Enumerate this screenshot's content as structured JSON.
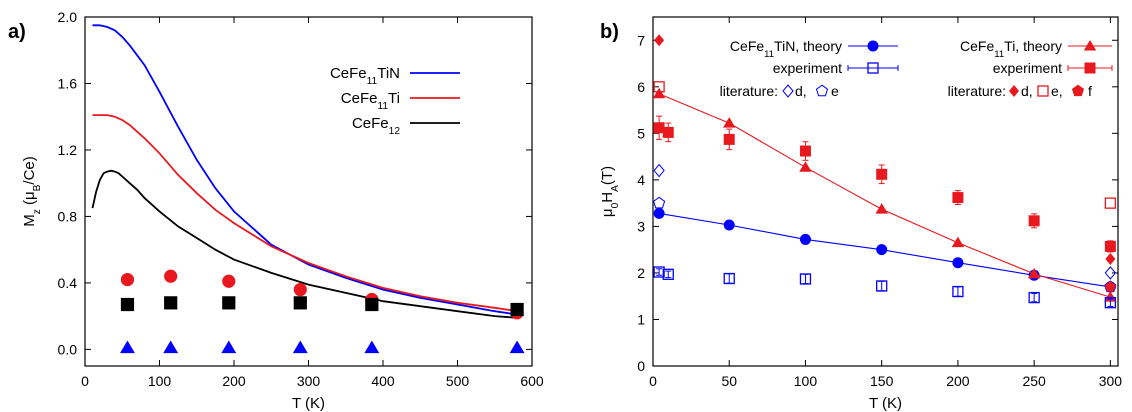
{
  "chart_data": [
    {
      "panel": "a)",
      "type": "line+scatter",
      "xlabel": "T (K)",
      "ylabel_text": "M",
      "ylabel_sub": "z",
      "ylabel_unit_open": " (μ",
      "ylabel_unit_sub": "B",
      "ylabel_unit_close": "/Ce)",
      "xlim": [
        0,
        600
      ],
      "ylim": [
        -0.1,
        2.0
      ],
      "xticks": [
        0,
        100,
        200,
        300,
        400,
        500,
        600
      ],
      "yticks": [
        0.0,
        0.4,
        0.8,
        1.2,
        1.6,
        2.0
      ],
      "ytick_format": 1,
      "legend": {
        "placement": "top-right",
        "entries": [
          {
            "base": "CeFe",
            "sub": "11",
            "rest": "TiN",
            "color": "#0000ff"
          },
          {
            "base": "CeFe",
            "sub": "11",
            "rest": "Ti",
            "color": "#e8191e"
          },
          {
            "base": "CeFe",
            "sub": "12",
            "rest": "",
            "color": "#000000"
          }
        ]
      },
      "series": [
        {
          "kind": "line",
          "color": "#0000ff",
          "x": [
            10,
            20,
            30,
            40,
            50,
            60,
            80,
            100,
            125,
            150,
            175,
            200,
            250,
            300,
            350,
            400,
            450,
            500,
            550,
            580
          ],
          "y": [
            1.95,
            1.95,
            1.94,
            1.92,
            1.88,
            1.83,
            1.71,
            1.55,
            1.34,
            1.14,
            0.97,
            0.83,
            0.63,
            0.51,
            0.43,
            0.36,
            0.31,
            0.27,
            0.23,
            0.21
          ]
        },
        {
          "kind": "line",
          "color": "#e8191e",
          "x": [
            10,
            20,
            30,
            40,
            50,
            60,
            80,
            100,
            125,
            150,
            175,
            200,
            250,
            300,
            350,
            400,
            450,
            500,
            550,
            580
          ],
          "y": [
            1.41,
            1.41,
            1.41,
            1.4,
            1.38,
            1.35,
            1.27,
            1.18,
            1.05,
            0.94,
            0.84,
            0.76,
            0.62,
            0.52,
            0.44,
            0.37,
            0.32,
            0.28,
            0.25,
            0.23
          ]
        },
        {
          "kind": "line",
          "color": "#000000",
          "x": [
            10,
            15,
            20,
            25,
            30,
            35,
            40,
            45,
            50,
            60,
            70,
            80,
            100,
            125,
            150,
            175,
            200,
            250,
            300,
            350,
            400,
            450,
            500,
            550,
            580
          ],
          "y": [
            0.85,
            0.95,
            1.02,
            1.06,
            1.07,
            1.075,
            1.07,
            1.06,
            1.04,
            1.0,
            0.96,
            0.91,
            0.83,
            0.74,
            0.67,
            0.6,
            0.54,
            0.46,
            0.39,
            0.34,
            0.29,
            0.26,
            0.23,
            0.2,
            0.19
          ]
        },
        {
          "kind": "points",
          "marker": "circle",
          "color": "#e8191e",
          "x": [
            57,
            115,
            193,
            289,
            385,
            580
          ],
          "y": [
            0.42,
            0.44,
            0.41,
            0.36,
            0.3,
            0.22
          ]
        },
        {
          "kind": "points",
          "marker": "square",
          "color": "#000000",
          "x": [
            57,
            115,
            193,
            289,
            385,
            580
          ],
          "y": [
            0.27,
            0.28,
            0.28,
            0.28,
            0.27,
            0.24
          ]
        },
        {
          "kind": "points",
          "marker": "triangle",
          "color": "#0000ff",
          "x": [
            57,
            115,
            193,
            289,
            385,
            580
          ],
          "y": [
            0.01,
            0.01,
            0.01,
            0.01,
            0.01,
            0.01
          ]
        }
      ]
    },
    {
      "panel": "b)",
      "type": "line+scatter",
      "xlabel": "T (K)",
      "ylabel_text": "μ",
      "ylabel_sub": "0",
      "ylabel_mid": "H",
      "ylabel_sub2": "A",
      "ylabel_end": "(T)",
      "xlim": [
        0,
        305
      ],
      "ylim": [
        0,
        7.5
      ],
      "xticks": [
        0,
        50,
        100,
        150,
        200,
        250,
        300
      ],
      "yticks": [
        0,
        1,
        2,
        3,
        4,
        5,
        6,
        7
      ],
      "ytick_format": 0,
      "legend": {
        "placement": "top",
        "entries": [
          {
            "base": "CeFe",
            "sub": "11",
            "rest": "TiN, theory",
            "color": "#0000ff",
            "marker": "circle",
            "style": "line"
          },
          {
            "base": "experiment",
            "sub": "",
            "rest": "",
            "color": "#0000ff",
            "marker": "open-square",
            "style": "errorbar"
          },
          {
            "base": "CeFe",
            "sub": "11",
            "rest": "Ti, theory",
            "color": "#e8191e",
            "marker": "triangle",
            "style": "line"
          },
          {
            "base": "experiment",
            "sub": "",
            "rest": "",
            "color": "#e8191e",
            "marker": "square",
            "style": "errorbar"
          }
        ],
        "lit_label": "literature:",
        "lit_blue": [
          "d,",
          "e"
        ],
        "lit_red": [
          "d,",
          "e,",
          "f"
        ]
      },
      "series": [
        {
          "kind": "line",
          "marker": "circle",
          "color": "#0000ff",
          "x": [
            4,
            50,
            100,
            150,
            200,
            250,
            300
          ],
          "y": [
            3.28,
            3.03,
            2.72,
            2.5,
            2.22,
            1.95,
            1.7
          ]
        },
        {
          "kind": "line",
          "marker": "triangle",
          "color": "#e8191e",
          "x": [
            4,
            50,
            100,
            150,
            200,
            250,
            300
          ],
          "y": [
            5.85,
            5.22,
            4.27,
            3.37,
            2.65,
            1.98,
            1.48
          ]
        },
        {
          "kind": "points",
          "marker": "open-square",
          "color": "#0000ff",
          "x": [
            4,
            10,
            50,
            100,
            150,
            200,
            250,
            300
          ],
          "y": [
            2.02,
            1.97,
            1.88,
            1.87,
            1.72,
            1.6,
            1.47,
            1.36
          ],
          "err": [
            0.07,
            0.07,
            0.1,
            0.1,
            0.1,
            0.1,
            0.09,
            0.08
          ]
        },
        {
          "kind": "points",
          "marker": "square",
          "color": "#e8191e",
          "x": [
            4,
            10,
            50,
            100,
            150,
            200,
            250,
            300
          ],
          "y": [
            5.12,
            5.02,
            4.87,
            4.62,
            4.12,
            3.62,
            3.12,
            2.57
          ],
          "err": [
            0.25,
            0.2,
            0.22,
            0.2,
            0.2,
            0.15,
            0.15,
            0.12
          ]
        },
        {
          "kind": "points",
          "marker": "open-diamond",
          "color": "#0000ff",
          "x": [
            4,
            300
          ],
          "y": [
            4.2,
            2.0
          ]
        },
        {
          "kind": "points",
          "marker": "open-pentagon",
          "color": "#0000ff",
          "x": [
            4,
            300
          ],
          "y": [
            3.5,
            1.7
          ]
        },
        {
          "kind": "points",
          "marker": "diamond",
          "color": "#e8191e",
          "x": [
            4,
            300
          ],
          "y": [
            7.0,
            2.3
          ]
        },
        {
          "kind": "points",
          "marker": "open-square",
          "color": "#e8191e",
          "x": [
            4,
            300
          ],
          "y": [
            6.0,
            3.5
          ]
        },
        {
          "kind": "points",
          "marker": "pentagon",
          "color": "#e8191e",
          "x": [
            300
          ],
          "y": [
            1.7
          ]
        }
      ]
    }
  ]
}
